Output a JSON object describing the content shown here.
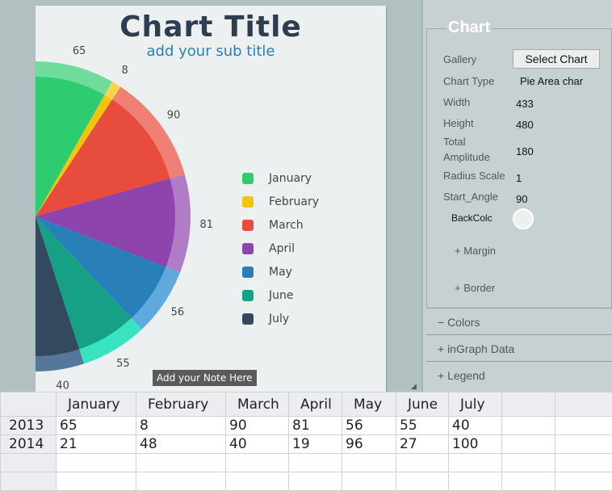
{
  "chart": {
    "title": "Chart Title",
    "subtitle": "add your sub title",
    "note": "Add your Note Here"
  },
  "chart_data": {
    "type": "pie",
    "variant": "pie-area",
    "categories": [
      "January",
      "February",
      "March",
      "April",
      "May",
      "June",
      "July"
    ],
    "values": [
      65,
      8,
      90,
      81,
      56,
      55,
      40
    ],
    "start_angle": 90,
    "total_amplitude": 180,
    "colors": [
      "#2ecc71",
      "#f1c40f",
      "#e74c3c",
      "#8e44ad",
      "#2980b9",
      "#16a085",
      "#34495e"
    ],
    "ring_colors": [
      "#6fdc9c",
      "#f6d54e",
      "#f08074",
      "#b07cc6",
      "#5eaadf",
      "#38e3bf",
      "#56779c"
    ],
    "legend": "right"
  },
  "panel": {
    "section": "Chart",
    "gallery_label": "Gallery",
    "select_chart": "Select Chart",
    "chart_type_label": "Chart Type",
    "chart_type": "Pie Area char",
    "width_label": "Width",
    "width": "433",
    "height_label": "Height",
    "height": "480",
    "amp_label_1": "Total",
    "amp_label_2": "Amplitude",
    "amplitude": "180",
    "radius_label": "Radius Scale",
    "radius": "1",
    "start_label": "Start_Angle",
    "start": "90",
    "backcolor_label": "BackColc",
    "backcolor": "#edf0f1",
    "margin": "+ Margin",
    "border": "+  Border",
    "colors": "−  Colors",
    "ingraph": "+  inGraph Data",
    "legend": "+  Legend"
  },
  "table": {
    "headers": [
      "January",
      "February",
      "March",
      "April",
      "May",
      "June",
      "July"
    ],
    "rows": [
      {
        "label": "2013",
        "values": [
          "65",
          "8",
          "90",
          "81",
          "56",
          "55",
          "40"
        ]
      },
      {
        "label": "2014",
        "values": [
          "21",
          "48",
          "40",
          "19",
          "96",
          "27",
          "100"
        ]
      }
    ]
  }
}
